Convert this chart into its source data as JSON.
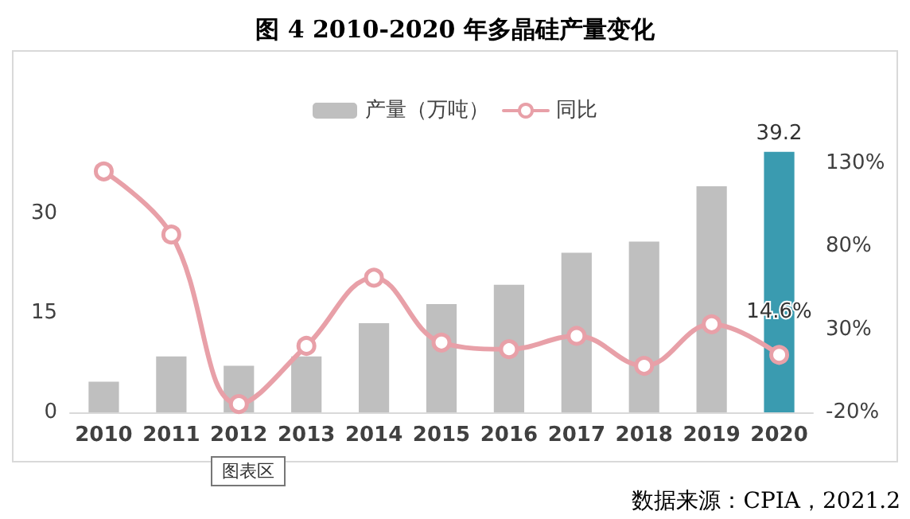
{
  "chart_data": {
    "type": "bar",
    "title": "图 4 2010-2020 年多晶硅产量变化",
    "categories": [
      "2010",
      "2011",
      "2012",
      "2013",
      "2014",
      "2015",
      "2016",
      "2017",
      "2018",
      "2019",
      "2020"
    ],
    "series": [
      {
        "name": "产量（万吨）",
        "color": "#bfbfbf",
        "colors": [
          "#bfbfbf",
          "#bfbfbf",
          "#bfbfbf",
          "#bfbfbf",
          "#bfbfbf",
          "#bfbfbf",
          "#bfbfbf",
          "#bfbfbf",
          "#bfbfbf",
          "#bfbfbf",
          "#3a9bb0"
        ],
        "values": [
          4.6,
          8.4,
          7.0,
          8.4,
          13.4,
          16.3,
          19.2,
          24.0,
          25.7,
          34.0,
          39.2
        ],
        "value_labels": [
          null,
          null,
          null,
          null,
          null,
          null,
          null,
          null,
          null,
          null,
          "39.2"
        ]
      },
      {
        "name": "同比",
        "type": "line",
        "axis": "y2",
        "color": "#e8a0a8",
        "values": [
          125,
          87,
          -15,
          20,
          61,
          22,
          18,
          26,
          8,
          33,
          14.6
        ],
        "value_labels": [
          null,
          null,
          null,
          null,
          null,
          null,
          null,
          null,
          null,
          null,
          "14.6%"
        ]
      }
    ],
    "ylim": [
      0,
      40
    ],
    "yticks": [
      0,
      15,
      30
    ],
    "y2lim": [
      -20,
      140
    ],
    "y2ticks": [
      {
        "value": -20,
        "label": "-20%"
      },
      {
        "value": 30,
        "label": "30%"
      },
      {
        "value": 80,
        "label": "80%"
      },
      {
        "value": 130,
        "label": "130%"
      }
    ],
    "legend": "top",
    "grid": false,
    "marker": "circle",
    "annotations": [
      "图表区",
      "数据来源：CPIA，2021.2"
    ]
  }
}
